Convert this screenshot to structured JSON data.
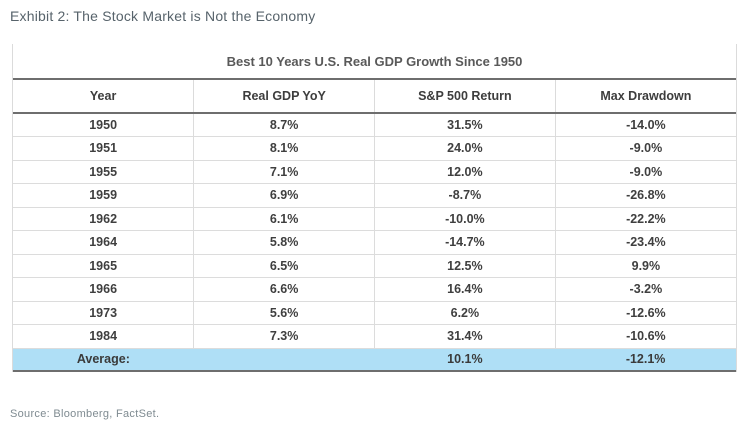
{
  "exhibit_title": "Exhibit 2: The Stock Market is Not the Economy",
  "source": "Source: Bloomberg, FactSet.",
  "colors": {
    "average_row_bg": "#afdff6",
    "dark_rule": "#6e6e6e",
    "light_grid": "#dcdcdc",
    "table_text": "#3f3f3f",
    "exhibit_title_text": "#57636b",
    "source_text": "#7f8b91"
  },
  "chart_data": {
    "type": "table",
    "title": "Best 10 Years U.S. Real GDP Growth Since 1950",
    "columns": [
      "Year",
      "Real GDP YoY",
      "S&P 500 Return",
      "Max Drawdown"
    ],
    "rows": [
      [
        "1950",
        "8.7%",
        "31.5%",
        "-14.0%"
      ],
      [
        "1951",
        "8.1%",
        "24.0%",
        "-9.0%"
      ],
      [
        "1955",
        "7.1%",
        "12.0%",
        "-9.0%"
      ],
      [
        "1959",
        "6.9%",
        "-8.7%",
        "-26.8%"
      ],
      [
        "1962",
        "6.1%",
        "-10.0%",
        "-22.2%"
      ],
      [
        "1964",
        "5.8%",
        "-14.7%",
        "-23.4%"
      ],
      [
        "1965",
        "6.5%",
        "12.5%",
        "9.9%"
      ],
      [
        "1966",
        "6.6%",
        "16.4%",
        "-3.2%"
      ],
      [
        "1973",
        "5.6%",
        "6.2%",
        "-12.6%"
      ],
      [
        "1984",
        "7.3%",
        "31.4%",
        "-10.6%"
      ]
    ],
    "average_row": [
      "Average:",
      "",
      "10.1%",
      "-12.1%"
    ],
    "layout": {
      "grid": "light vertical and horizontal rules between cells",
      "highlight": "average row highlighted light blue",
      "alignment": "all cells centered"
    }
  }
}
